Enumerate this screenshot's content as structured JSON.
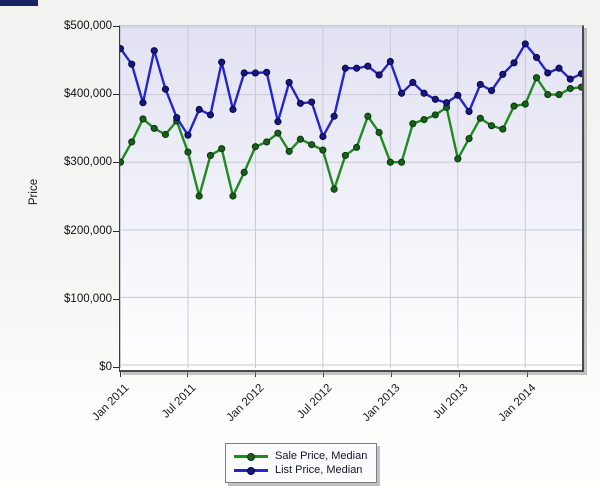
{
  "page": {
    "corner_bar_color": "#192561",
    "background_note": "light gray gradient page, no title text"
  },
  "chart_data": {
    "type": "line",
    "title": "",
    "xlabel": "",
    "ylabel": "Price",
    "ylim": [
      0,
      500000
    ],
    "grid": true,
    "legend_position": "bottom-center",
    "y_tick_values": [
      500000,
      400000,
      300000,
      200000,
      100000,
      0
    ],
    "y_tick_labels": [
      "$500,000",
      "$400,000",
      "$300,000",
      "$200,000",
      "$100,000",
      "$0"
    ],
    "x_tick_labels": [
      "Jan 2011",
      "Jul 2011",
      "Jan 2012",
      "Jul 2012",
      "Jan 2013",
      "Jul 2013",
      "Jan 2014"
    ],
    "x_gridline_indices": [
      0,
      6,
      12,
      18,
      24,
      30,
      36
    ],
    "x": [
      "Jan 2011",
      "Feb 2011",
      "Mar 2011",
      "Apr 2011",
      "May 2011",
      "Jun 2011",
      "Jul 2011",
      "Aug 2011",
      "Sep 2011",
      "Oct 2011",
      "Nov 2011",
      "Dec 2011",
      "Jan 2012",
      "Feb 2012",
      "Mar 2012",
      "Apr 2012",
      "May 2012",
      "Jun 2012",
      "Jul 2012",
      "Aug 2012",
      "Sep 2012",
      "Oct 2012",
      "Nov 2012",
      "Dec 2012",
      "Jan 2013",
      "Feb 2013",
      "Mar 2013",
      "Apr 2013",
      "May 2013",
      "Jun 2013",
      "Jul 2013",
      "Aug 2013",
      "Sep 2013",
      "Oct 2013",
      "Nov 2013",
      "Dec 2013",
      "Jan 2014",
      "Feb 2014",
      "Mar 2014",
      "Apr 2014",
      "May 2014",
      "Jun 2014"
    ],
    "series": [
      {
        "name": "Sale Price, Median",
        "color": "#1f8a1f",
        "marker_fill": "#176017",
        "marker_stroke": "#0b330f",
        "values": [
          300000,
          330000,
          364000,
          350000,
          341000,
          361000,
          315000,
          250000,
          310000,
          320000,
          250000,
          285000,
          323000,
          330000,
          343000,
          316000,
          334000,
          326000,
          318000,
          260000,
          310000,
          322000,
          368000,
          344000,
          300000,
          300000,
          357000,
          363000,
          370000,
          381000,
          305000,
          335000,
          365000,
          354000,
          349000,
          383000,
          386000,
          425000,
          400000,
          400000,
          409000,
          411000
        ]
      },
      {
        "name": "List Price, Median",
        "color": "#2424d0",
        "marker_fill": "#17177f",
        "marker_stroke": "#070740",
        "values": [
          468000,
          445000,
          388000,
          465000,
          408000,
          366000,
          340000,
          378000,
          370000,
          448000,
          378000,
          432000,
          432000,
          433000,
          360000,
          418000,
          387000,
          389000,
          338000,
          368000,
          439000,
          439000,
          442000,
          429000,
          449000,
          402000,
          418000,
          402000,
          393000,
          388000,
          399000,
          375000,
          415000,
          406000,
          430000,
          447000,
          475000,
          455000,
          432000,
          439000,
          423000,
          431000
        ]
      }
    ],
    "style": {
      "gridline_color": "#c9c9d6",
      "plot_bg_top": "#e1e1f2",
      "plot_bg_bottom": "#ffffff"
    }
  },
  "legend": {
    "items": [
      {
        "label": "Sale Price, Median"
      },
      {
        "label": "List Price, Median"
      }
    ]
  }
}
